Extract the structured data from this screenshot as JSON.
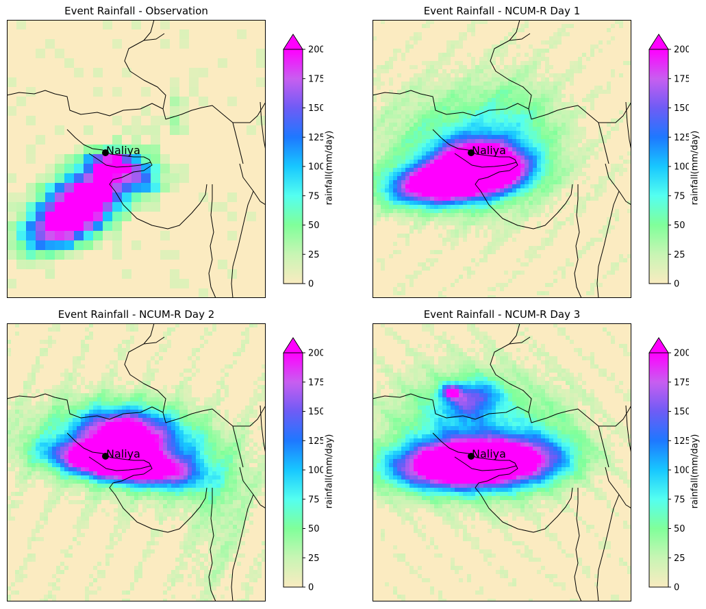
{
  "panels": [
    {
      "title": "Event Rainfall - Observation",
      "style": "coarse",
      "location_label": "Naliya"
    },
    {
      "title": "Event Rainfall - NCUM-R Day 1",
      "style": "day1",
      "location_label": "Naliya"
    },
    {
      "title": "Event Rainfall - NCUM-R Day 2",
      "style": "day2",
      "location_label": "Naliya"
    },
    {
      "title": "Event Rainfall - NCUM-R Day 3",
      "style": "day3",
      "location_label": "Naliya"
    }
  ],
  "colorbar": {
    "label": "rainfall(mm/day)",
    "ticks": [
      "0",
      "25",
      "50",
      "75",
      "100",
      "125",
      "150",
      "175",
      "200"
    ],
    "min": 0,
    "max": 200,
    "extend": "max",
    "colors": [
      "#f9ebc0",
      "#c8f5b4",
      "#80ff9a",
      "#54fff0",
      "#18c7ff",
      "#1e78ff",
      "#6e5cf5",
      "#c85ef0",
      "#ff00ff"
    ]
  }
}
